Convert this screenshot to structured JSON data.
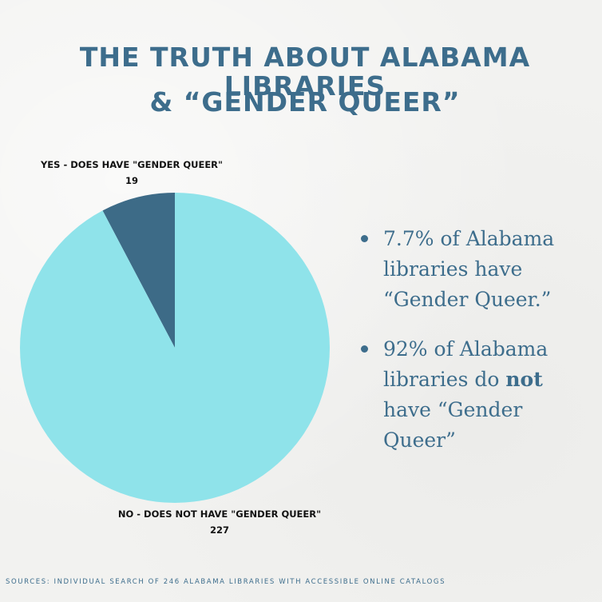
{
  "title": {
    "line1": "THE TRUTH ABOUT ALABAMA LIBRARIES",
    "line2": "& “GENDER QUEER”"
  },
  "chart_data": {
    "type": "pie",
    "categories": [
      "YES - DOES HAVE \"GENDER QUEER\"",
      "NO - DOES NOT HAVE \"GENDER QUEER\""
    ],
    "values": [
      19,
      227
    ],
    "value_labels": [
      "19",
      "227"
    ],
    "colors": [
      "#3d6b87",
      "#8fe3ea"
    ]
  },
  "bullets": {
    "item1": "7.7% of Alabama libraries have “Gender Queer.”",
    "item2_pre": "92% of Alabama libraries do ",
    "item2_bold": "not",
    "item2_post": " have “Gender Queer”"
  },
  "sources": "SOURCES: INDIVIDUAL SEARCH OF 246 ALABAMA LIBRARIES WITH ACCESSIBLE ONLINE CATALOGS"
}
